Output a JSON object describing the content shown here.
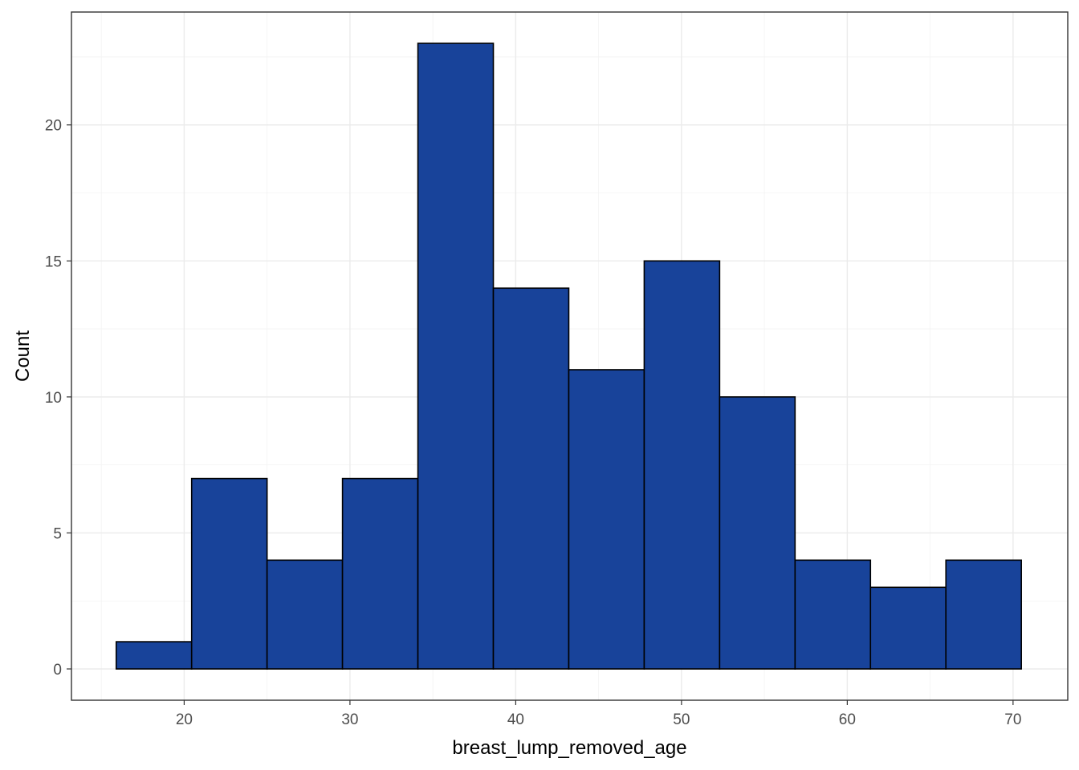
{
  "chart_data": {
    "type": "bar",
    "subtype": "histogram",
    "title": "",
    "xlabel": "breast_lump_removed_age",
    "ylabel": "Count",
    "xlim": [
      13.2,
      73.3
    ],
    "ylim": [
      -1.15,
      24.15
    ],
    "x_ticks": [
      20,
      30,
      40,
      50,
      60,
      70
    ],
    "y_ticks": [
      0,
      5,
      10,
      15,
      20
    ],
    "bins": [
      {
        "x0": 15.9,
        "x1": 20.45,
        "count": 1
      },
      {
        "x0": 20.45,
        "x1": 25.0,
        "count": 7
      },
      {
        "x0": 25.0,
        "x1": 29.55,
        "count": 4
      },
      {
        "x0": 29.55,
        "x1": 34.1,
        "count": 7
      },
      {
        "x0": 34.1,
        "x1": 38.65,
        "count": 23
      },
      {
        "x0": 38.65,
        "x1": 43.2,
        "count": 14
      },
      {
        "x0": 43.2,
        "x1": 47.75,
        "count": 11
      },
      {
        "x0": 47.75,
        "x1": 52.3,
        "count": 15
      },
      {
        "x0": 52.3,
        "x1": 56.85,
        "count": 10
      },
      {
        "x0": 56.85,
        "x1": 61.4,
        "count": 4
      },
      {
        "x0": 61.4,
        "x1": 65.95,
        "count": 3
      },
      {
        "x0": 65.95,
        "x1": 70.5,
        "count": 4
      }
    ],
    "grid": true,
    "colors": {
      "bar_fill": "#18439a",
      "bar_outline": "#000000",
      "panel_border": "#333333"
    }
  }
}
